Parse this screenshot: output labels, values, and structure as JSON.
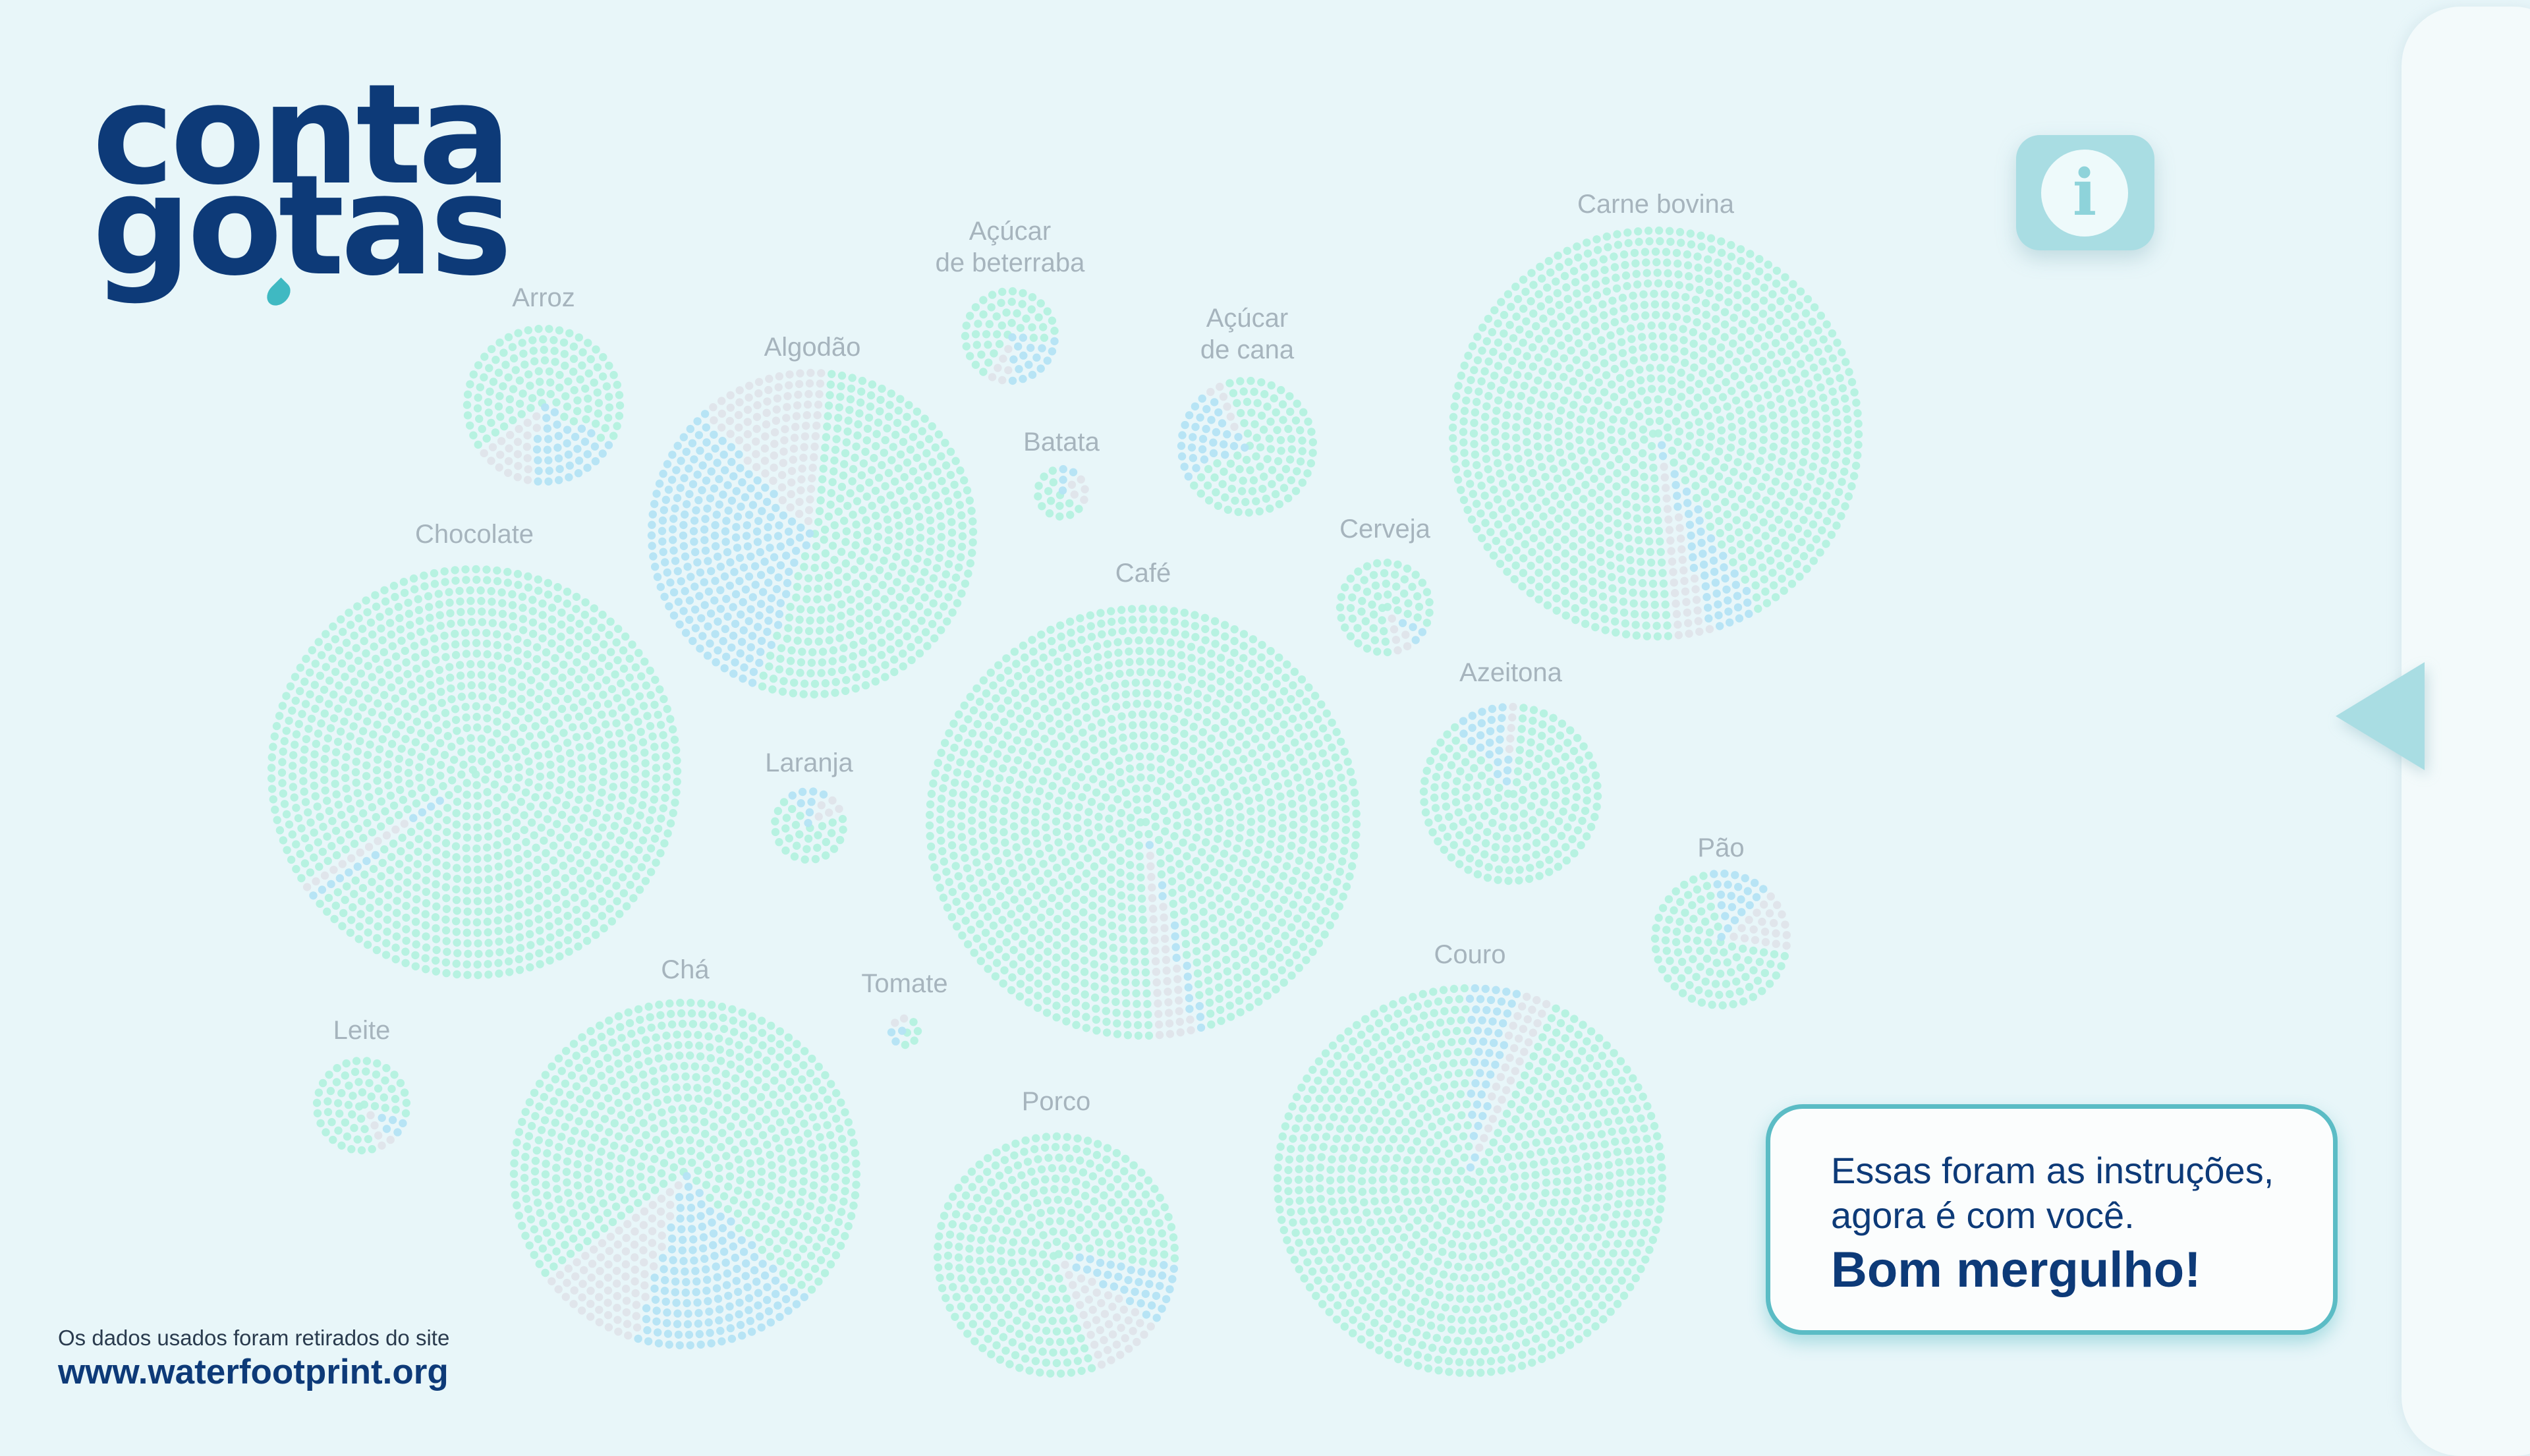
{
  "brand": {
    "logo_line1": "conta",
    "logo_line2": "gotas"
  },
  "info_button": {
    "icon": "info-icon"
  },
  "side_panel": {
    "toggle_icon": "left-arrow-icon"
  },
  "message": {
    "line1": "Essas foram as instruções,",
    "line2": "agora é com você.",
    "strong": "Bom mergulho!"
  },
  "source": {
    "note": "Os dados usados foram retirados do site",
    "url": "www.waterfootprint.org"
  },
  "colors": {
    "green_water": "#b4f1df",
    "blue_water": "#b4e3f4",
    "grey_water": "#dfe4ea",
    "label": "#a6b4bd",
    "brand_navy": "#0d3a78",
    "accent": "#a9dde3"
  },
  "chart_data": {
    "type": "pie",
    "series_keys": [
      "green",
      "blue",
      "grey"
    ],
    "items": [
      {
        "label": [
          "Arroz"
        ],
        "shares": [
          0.68,
          0.2,
          0.12
        ]
      },
      {
        "label": [
          "Algodão"
        ],
        "shares": [
          0.54,
          0.33,
          0.13
        ]
      },
      {
        "label": [
          "Açúcar",
          "de beterraba"
        ],
        "shares": [
          0.68,
          0.24,
          0.08
        ]
      },
      {
        "label": [
          "Batata"
        ],
        "shares": [
          0.66,
          0.11,
          0.23
        ]
      },
      {
        "label": [
          "Açúcar",
          "de cana"
        ],
        "shares": [
          0.73,
          0.23,
          0.04
        ]
      },
      {
        "label": [
          "Carne bovina"
        ],
        "shares": [
          0.93,
          0.04,
          0.03
        ]
      },
      {
        "label": [
          "Chocolate"
        ],
        "shares": [
          0.98,
          0.01,
          0.01
        ]
      },
      {
        "label": [
          "Café"
        ],
        "shares": [
          0.96,
          0.01,
          0.03
        ]
      },
      {
        "label": [
          "Cerveja"
        ],
        "shares": [
          0.85,
          0.06,
          0.09
        ]
      },
      {
        "label": [
          "Azeitona"
        ],
        "shares": [
          0.88,
          0.1,
          0.02
        ]
      },
      {
        "label": [
          "Laranja"
        ],
        "shares": [
          0.72,
          0.16,
          0.12
        ]
      },
      {
        "label": [
          "Pão"
        ],
        "shares": [
          0.7,
          0.15,
          0.15
        ]
      },
      {
        "label": [
          "Leite"
        ],
        "shares": [
          0.85,
          0.08,
          0.07
        ]
      },
      {
        "label": [
          "Chá"
        ],
        "shares": [
          0.73,
          0.17,
          0.1
        ]
      },
      {
        "label": [
          "Tomate"
        ],
        "shares": [
          0.5,
          0.3,
          0.2
        ]
      },
      {
        "label": [
          "Porco"
        ],
        "shares": [
          0.82,
          0.08,
          0.1
        ]
      },
      {
        "label": [
          "Couro"
        ],
        "shares": [
          0.93,
          0.04,
          0.03
        ]
      }
    ]
  }
}
